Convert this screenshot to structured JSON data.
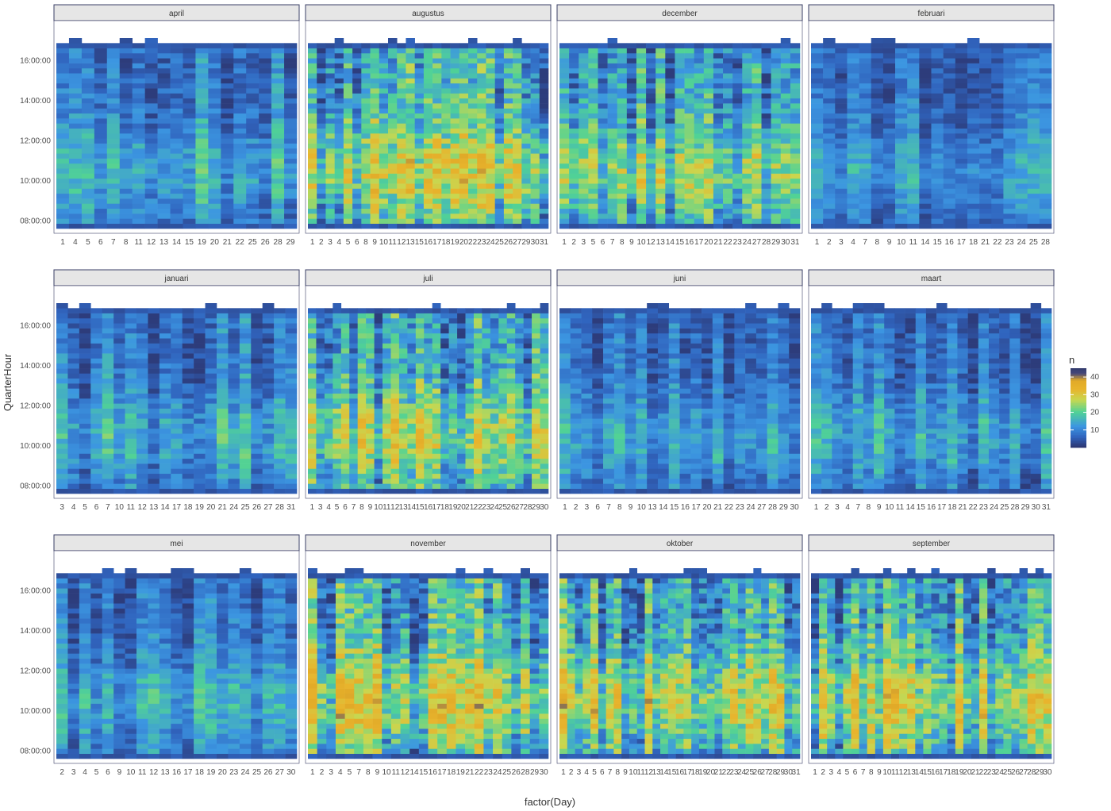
{
  "chart_data": {
    "type": "heatmap",
    "xlabel": "factor(Day)",
    "ylabel": "QuarterHour",
    "y_ticks": [
      "08:00:00",
      "10:00:00",
      "12:00:00",
      "14:00:00",
      "16:00:00"
    ],
    "y_range": [
      "07:45:00",
      "17:15:00"
    ],
    "legend": {
      "title": "n",
      "breaks": [
        10,
        20,
        30,
        40
      ],
      "range": [
        0,
        45
      ],
      "position": "right"
    },
    "colors": {
      "low": "#2c3e7a",
      "mid_low": "#3b86d6",
      "mid": "#4fd090",
      "mid_high": "#e5b530",
      "high": "#3a3f7a",
      "panel_background": "#ffffff",
      "strip_fill": "#e6e6e6",
      "strip_border": "#3a3f66"
    },
    "panels": [
      {
        "name": "april",
        "days": [
          1,
          4,
          5,
          6,
          7,
          8,
          11,
          12,
          13,
          14,
          15,
          19,
          20,
          21,
          22,
          25,
          26,
          28,
          29
        ],
        "level": 12
      },
      {
        "name": "augustus",
        "days": [
          1,
          2,
          3,
          4,
          5,
          6,
          8,
          9,
          10,
          11,
          12,
          13,
          15,
          16,
          17,
          18,
          19,
          20,
          22,
          23,
          24,
          25,
          26,
          27,
          29,
          30,
          31
        ],
        "level": 20
      },
      {
        "name": "december",
        "days": [
          1,
          2,
          3,
          5,
          6,
          7,
          8,
          9,
          10,
          12,
          13,
          14,
          15,
          16,
          17,
          20,
          21,
          22,
          23,
          24,
          27,
          28,
          29,
          30,
          31
        ],
        "level": 18
      },
      {
        "name": "februari",
        "days": [
          1,
          2,
          3,
          4,
          7,
          8,
          9,
          10,
          11,
          14,
          15,
          16,
          17,
          18,
          21,
          22,
          23,
          24,
          25,
          28
        ],
        "level": 10
      },
      {
        "name": "januari",
        "days": [
          3,
          4,
          5,
          6,
          7,
          10,
          11,
          12,
          13,
          14,
          17,
          18,
          19,
          20,
          21,
          24,
          25,
          26,
          27,
          28,
          31
        ],
        "level": 12
      },
      {
        "name": "juli",
        "days": [
          1,
          3,
          4,
          5,
          6,
          7,
          8,
          9,
          10,
          11,
          12,
          13,
          14,
          15,
          16,
          17,
          18,
          19,
          20,
          21,
          22,
          23,
          24,
          25,
          26,
          27,
          28,
          29,
          30
        ],
        "level": 19
      },
      {
        "name": "juni",
        "days": [
          1,
          2,
          3,
          6,
          7,
          8,
          9,
          10,
          13,
          14,
          15,
          16,
          17,
          20,
          21,
          22,
          23,
          24,
          27,
          28,
          29,
          30
        ],
        "level": 11
      },
      {
        "name": "maart",
        "days": [
          1,
          2,
          3,
          4,
          7,
          8,
          9,
          10,
          11,
          14,
          15,
          16,
          17,
          18,
          21,
          22,
          23,
          24,
          25,
          28,
          29,
          30,
          31
        ],
        "level": 11
      },
      {
        "name": "mei",
        "days": [
          2,
          3,
          4,
          5,
          6,
          9,
          10,
          11,
          12,
          13,
          16,
          17,
          18,
          19,
          20,
          23,
          24,
          25,
          26,
          27,
          30
        ],
        "level": 11
      },
      {
        "name": "november",
        "days": [
          1,
          2,
          3,
          4,
          5,
          7,
          8,
          9,
          10,
          11,
          12,
          14,
          15,
          16,
          17,
          18,
          19,
          21,
          22,
          23,
          24,
          25,
          26,
          28,
          29,
          30
        ],
        "level": 21
      },
      {
        "name": "oktober",
        "days": [
          1,
          2,
          3,
          4,
          5,
          6,
          7,
          8,
          9,
          10,
          11,
          12,
          13,
          14,
          15,
          16,
          17,
          18,
          19,
          20,
          21,
          22,
          23,
          24,
          25,
          26,
          27,
          28,
          29,
          30,
          31
        ],
        "level": 20
      },
      {
        "name": "september",
        "days": [
          1,
          2,
          3,
          4,
          5,
          6,
          7,
          8,
          9,
          10,
          11,
          12,
          13,
          14,
          15,
          16,
          17,
          18,
          19,
          20,
          21,
          22,
          23,
          24,
          25,
          26,
          27,
          28,
          29,
          30
        ],
        "level": 20
      }
    ]
  }
}
